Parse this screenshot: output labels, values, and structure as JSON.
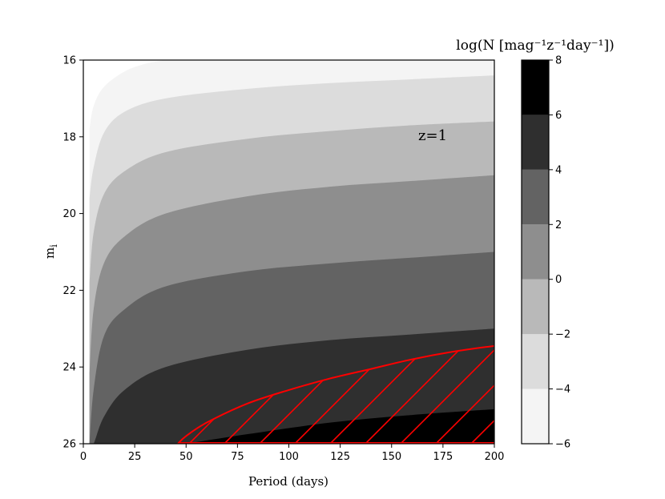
{
  "chart_data": {
    "type": "contour",
    "xlabel": "Period (days)",
    "ylabel_main": "m",
    "ylabel_sub": "i",
    "xlim": [
      0,
      200
    ],
    "ylim": [
      26,
      16
    ],
    "y_inverted": true,
    "x_ticks": [
      "0",
      "25",
      "50",
      "75",
      "100",
      "125",
      "150",
      "175",
      "200"
    ],
    "y_ticks": [
      "16",
      "18",
      "20",
      "22",
      "24",
      "26"
    ],
    "annotation": "z=1",
    "colorbar": {
      "title": "log(N [mag⁻¹z⁻¹day⁻¹])",
      "levels": [
        -6,
        -4,
        -2,
        0,
        2,
        4,
        6,
        8
      ],
      "tick_labels": [
        "−6",
        "−4",
        "−2",
        "0",
        "2",
        "4",
        "6",
        "8"
      ],
      "colors": [
        "#f4f4f4",
        "#dcdcdc",
        "#b9b9b9",
        "#8e8e8e",
        "#636363",
        "#2f2f2f",
        "#000000"
      ]
    },
    "contour_boundaries": [
      {
        "level": -4,
        "points": [
          [
            3,
            17.8
          ],
          [
            5,
            17.2
          ],
          [
            10,
            16.7
          ],
          [
            20,
            16.3
          ],
          [
            30,
            16.1
          ],
          [
            40,
            16.0
          ]
        ]
      },
      {
        "level": -2,
        "points": [
          [
            3,
            19.6
          ],
          [
            5,
            18.8
          ],
          [
            10,
            17.9
          ],
          [
            20,
            17.35
          ],
          [
            40,
            17.0
          ],
          [
            80,
            16.75
          ],
          [
            120,
            16.6
          ],
          [
            160,
            16.5
          ],
          [
            200,
            16.4
          ]
        ]
      },
      {
        "level": 0,
        "points": [
          [
            3,
            21.8
          ],
          [
            5,
            20.5
          ],
          [
            10,
            19.5
          ],
          [
            20,
            18.9
          ],
          [
            40,
            18.4
          ],
          [
            80,
            18.05
          ],
          [
            120,
            17.85
          ],
          [
            160,
            17.7
          ],
          [
            200,
            17.6
          ]
        ]
      },
      {
        "level": 2,
        "points": [
          [
            3,
            24.2
          ],
          [
            5,
            22.5
          ],
          [
            10,
            21.3
          ],
          [
            20,
            20.6
          ],
          [
            40,
            20.0
          ],
          [
            80,
            19.55
          ],
          [
            120,
            19.3
          ],
          [
            160,
            19.15
          ],
          [
            200,
            19.0
          ]
        ]
      },
      {
        "level": 4,
        "points": [
          [
            3,
            26.0
          ],
          [
            5,
            24.6
          ],
          [
            10,
            23.2
          ],
          [
            20,
            22.5
          ],
          [
            40,
            21.9
          ],
          [
            80,
            21.5
          ],
          [
            120,
            21.3
          ],
          [
            160,
            21.15
          ],
          [
            200,
            21.0
          ]
        ]
      },
      {
        "level": 6,
        "points": [
          [
            3,
            26.0
          ],
          [
            5,
            26.0
          ],
          [
            10,
            25.3
          ],
          [
            20,
            24.6
          ],
          [
            40,
            24.0
          ],
          [
            80,
            23.55
          ],
          [
            120,
            23.3
          ],
          [
            160,
            23.15
          ],
          [
            200,
            23.0
          ]
        ]
      },
      {
        "level": 8,
        "points": [
          [
            50,
            26.0
          ],
          [
            80,
            25.75
          ],
          [
            120,
            25.45
          ],
          [
            160,
            25.25
          ],
          [
            200,
            25.1
          ]
        ]
      }
    ],
    "hatched_region": {
      "color": "#ff0000",
      "boundary": [
        [
          46,
          26.0
        ],
        [
          50,
          25.8
        ],
        [
          60,
          25.45
        ],
        [
          80,
          24.95
        ],
        [
          100,
          24.6
        ],
        [
          120,
          24.3
        ],
        [
          140,
          24.05
        ],
        [
          160,
          23.8
        ],
        [
          180,
          23.6
        ],
        [
          200,
          23.45
        ]
      ]
    }
  }
}
